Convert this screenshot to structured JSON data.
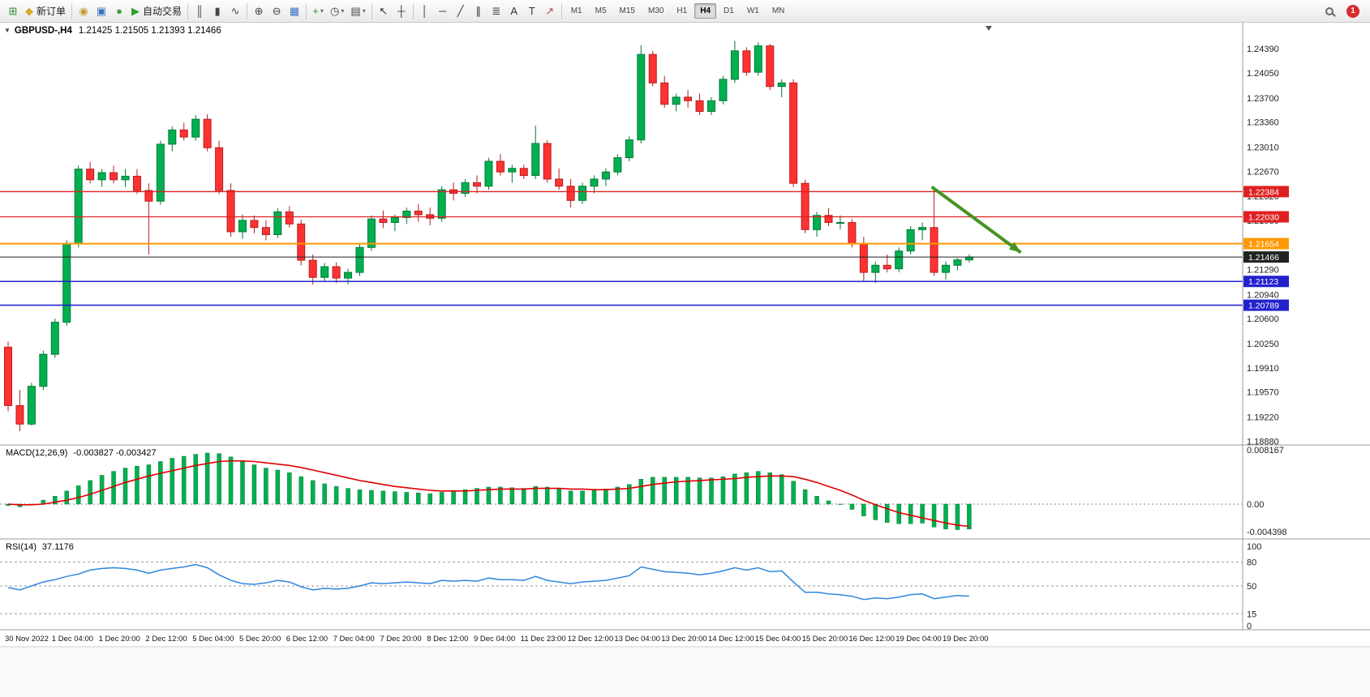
{
  "icons": {
    "one_click_toggle": "▼",
    "dropdown": "▾"
  },
  "toolbar": {
    "groups": [
      {
        "buttons": [
          {
            "name": "new-chart",
            "glyph": "⊞",
            "color": "#2f8f2f"
          },
          {
            "name": "new-order",
            "glyph": "◆",
            "color": "#d9a82a",
            "label": "新订单"
          }
        ]
      },
      {
        "buttons": [
          {
            "name": "mql5-community",
            "glyph": "◉",
            "color": "#c79a2e"
          },
          {
            "name": "charts-window",
            "glyph": "▣",
            "color": "#3a6fc4"
          },
          {
            "name": "metaeditor",
            "glyph": "●",
            "color": "#3f9e3f"
          },
          {
            "name": "autotrade",
            "glyph": "▶",
            "color": "#2f9e2f",
            "label": "自动交易"
          }
        ]
      },
      {
        "buttons": [
          {
            "name": "bar-chart-mode",
            "glyph": "║",
            "color": "#444444"
          },
          {
            "name": "candlestick-mode",
            "glyph": "▮",
            "color": "#444444"
          },
          {
            "name": "line-chart-mode",
            "glyph": "∿",
            "color": "#444444"
          }
        ]
      },
      {
        "buttons": [
          {
            "name": "zoom-in",
            "glyph": "⊕",
            "color": "#444444"
          },
          {
            "name": "zoom-out",
            "glyph": "⊖",
            "color": "#444444"
          },
          {
            "name": "tile-windows",
            "glyph": "▦",
            "color": "#3a6fc4"
          }
        ]
      },
      {
        "buttons": [
          {
            "name": "indicators",
            "glyph": "+",
            "color": "#2f8f2f",
            "dropdown": true
          },
          {
            "name": "periods",
            "glyph": "◷",
            "color": "#444444",
            "dropdown": true
          },
          {
            "name": "templates",
            "glyph": "▤",
            "color": "#444444",
            "dropdown": true
          }
        ]
      },
      {
        "buttons": [
          {
            "name": "cursor",
            "glyph": "↖",
            "color": "#333333"
          },
          {
            "name": "crosshair",
            "glyph": "┼",
            "color": "#333333"
          }
        ]
      },
      {
        "buttons": [
          {
            "name": "vertical-line",
            "glyph": "│",
            "color": "#333333"
          },
          {
            "name": "horizontal-line",
            "glyph": "─",
            "color": "#333333"
          },
          {
            "name": "trendline",
            "glyph": "╱",
            "color": "#333333"
          },
          {
            "name": "equidistant-channel",
            "glyph": "∥",
            "color": "#333333"
          },
          {
            "name": "fibonacci",
            "glyph": "≣",
            "color": "#333333"
          },
          {
            "name": "text",
            "glyph": "A",
            "color": "#333333"
          },
          {
            "name": "text-label",
            "glyph": "T",
            "color": "#333333"
          },
          {
            "name": "arrows",
            "glyph": "↗",
            "color": "#b34a4a"
          }
        ]
      }
    ],
    "timeframes": [
      "M1",
      "M5",
      "M15",
      "M30",
      "H1",
      "H4",
      "D1",
      "W1",
      "MN"
    ],
    "active_timeframe": "H4",
    "notification_count": "1"
  },
  "chart_data": {
    "type": "candlestick",
    "symbol_line": "GBPUSD-,H4",
    "ohlc_line": "1.21425 1.21505 1.21393 1.21466",
    "current": {
      "open": 1.21425,
      "high": 1.21505,
      "low": 1.21393,
      "close": 1.21466
    },
    "price_axis_ticks": [
      1.2439,
      1.2405,
      1.237,
      1.2336,
      1.2301,
      1.2267,
      1.2232,
      1.2198,
      1.2163,
      1.2129,
      1.2094,
      1.206,
      1.2025,
      1.1991,
      1.1957,
      1.1922,
      1.1888
    ],
    "hlines": [
      {
        "price": 1.22384,
        "label": "1.22384",
        "color": "#e02020",
        "width": 1.3
      },
      {
        "price": 1.2203,
        "label": "1.22030",
        "color": "#e02020",
        "width": 1.3
      },
      {
        "price": 1.21654,
        "label": "1.21654",
        "color": "#ff9900",
        "width": 2
      },
      {
        "price": 1.21466,
        "label": "1.21466",
        "color": "#222222",
        "width": 1
      },
      {
        "price": 1.21123,
        "label": "1.21123",
        "color": "#2222cc",
        "width": 1.6
      },
      {
        "price": 1.20789,
        "label": "1.20789",
        "color": "#2222cc",
        "width": 1.6
      }
    ],
    "time_labels": [
      "30 Nov 2022",
      "1 Dec 04:00",
      "1 Dec 20:00",
      "2 Dec 12:00",
      "5 Dec 04:00",
      "5 Dec 20:00",
      "6 Dec 12:00",
      "7 Dec 04:00",
      "7 Dec 20:00",
      "8 Dec 12:00",
      "9 Dec 04:00",
      "11 Dec 23:00",
      "12 Dec 12:00",
      "13 Dec 04:00",
      "13 Dec 20:00",
      "14 Dec 12:00",
      "15 Dec 04:00",
      "15 Dec 20:00",
      "16 Dec 12:00",
      "19 Dec 04:00",
      "19 Dec 20:00"
    ],
    "candles": [
      [
        1.202,
        1.2028,
        1.193,
        1.1938
      ],
      [
        1.1938,
        1.196,
        1.1902,
        1.1912
      ],
      [
        1.1912,
        1.197,
        1.191,
        1.1965
      ],
      [
        1.1965,
        1.2015,
        1.196,
        1.201
      ],
      [
        1.201,
        1.206,
        1.2005,
        1.2055
      ],
      [
        1.2055,
        1.217,
        1.205,
        1.2165
      ],
      [
        1.2165,
        1.2275,
        1.216,
        1.227
      ],
      [
        1.227,
        1.228,
        1.225,
        1.2255
      ],
      [
        1.2255,
        1.227,
        1.2245,
        1.2265
      ],
      [
        1.2265,
        1.2275,
        1.225,
        1.2255
      ],
      [
        1.2255,
        1.227,
        1.2245,
        1.226
      ],
      [
        1.226,
        1.227,
        1.2235,
        1.224
      ],
      [
        1.224,
        1.225,
        1.215,
        1.2225
      ],
      [
        1.2225,
        1.231,
        1.222,
        1.2305
      ],
      [
        1.2305,
        1.233,
        1.2295,
        1.2325
      ],
      [
        1.2325,
        1.2335,
        1.231,
        1.2315
      ],
      [
        1.2315,
        1.2346,
        1.231,
        1.234
      ],
      [
        1.234,
        1.2347,
        1.2295,
        1.23
      ],
      [
        1.23,
        1.231,
        1.2235,
        1.224
      ],
      [
        1.224,
        1.225,
        1.2175,
        1.2182
      ],
      [
        1.2182,
        1.2206,
        1.2172,
        1.2198
      ],
      [
        1.2198,
        1.2205,
        1.218,
        1.2188
      ],
      [
        1.2188,
        1.2198,
        1.217,
        1.2178
      ],
      [
        1.2178,
        1.2215,
        1.2173,
        1.221
      ],
      [
        1.221,
        1.2218,
        1.2188,
        1.2193
      ],
      [
        1.2193,
        1.2199,
        1.2135,
        1.2142
      ],
      [
        1.2142,
        1.215,
        1.2108,
        1.2118
      ],
      [
        1.2118,
        1.2138,
        1.2113,
        1.2133
      ],
      [
        1.2133,
        1.2139,
        1.211,
        1.2117
      ],
      [
        1.2117,
        1.213,
        1.2108,
        1.2125
      ],
      [
        1.2125,
        1.2165,
        1.212,
        1.216
      ],
      [
        1.216,
        1.2205,
        1.2155,
        1.22
      ],
      [
        1.22,
        1.2212,
        1.2187,
        1.2195
      ],
      [
        1.2195,
        1.2206,
        1.2183,
        1.2202
      ],
      [
        1.2202,
        1.2216,
        1.2193,
        1.2211
      ],
      [
        1.2211,
        1.2221,
        1.2196,
        1.2206
      ],
      [
        1.2206,
        1.2216,
        1.2191,
        1.2201
      ],
      [
        1.2201,
        1.2246,
        1.2196,
        1.2241
      ],
      [
        1.2241,
        1.2251,
        1.2226,
        1.2236
      ],
      [
        1.2236,
        1.2256,
        1.2231,
        1.2251
      ],
      [
        1.2251,
        1.2261,
        1.2236,
        1.2246
      ],
      [
        1.2246,
        1.2286,
        1.2241,
        1.2281
      ],
      [
        1.2281,
        1.2291,
        1.2261,
        1.2266
      ],
      [
        1.2266,
        1.2276,
        1.2251,
        1.2271
      ],
      [
        1.2271,
        1.2276,
        1.2256,
        1.2261
      ],
      [
        1.2261,
        1.2331,
        1.2256,
        1.2306
      ],
      [
        1.2306,
        1.2311,
        1.2251,
        1.2256
      ],
      [
        1.2256,
        1.2271,
        1.2241,
        1.2246
      ],
      [
        1.2246,
        1.2256,
        1.2216,
        1.2226
      ],
      [
        1.2226,
        1.2251,
        1.2221,
        1.2246
      ],
      [
        1.2246,
        1.2261,
        1.2236,
        1.2256
      ],
      [
        1.2256,
        1.2271,
        1.2246,
        1.2266
      ],
      [
        1.2266,
        1.2291,
        1.2261,
        1.2286
      ],
      [
        1.2286,
        1.2316,
        1.2281,
        1.2311
      ],
      [
        1.2311,
        1.2444,
        1.2306,
        1.2431
      ],
      [
        1.2431,
        1.2436,
        1.2386,
        1.2391
      ],
      [
        1.2391,
        1.2401,
        1.2356,
        1.2361
      ],
      [
        1.2361,
        1.2376,
        1.2351,
        1.2371
      ],
      [
        1.2371,
        1.2381,
        1.2356,
        1.2366
      ],
      [
        1.2366,
        1.2376,
        1.2346,
        1.2351
      ],
      [
        1.2351,
        1.2371,
        1.2346,
        1.2366
      ],
      [
        1.2366,
        1.2401,
        1.2361,
        1.2396
      ],
      [
        1.2396,
        1.245,
        1.2391,
        1.2436
      ],
      [
        1.2436,
        1.2441,
        1.2401,
        1.2406
      ],
      [
        1.2406,
        1.2448,
        1.2401,
        1.2443
      ],
      [
        1.2443,
        1.2446,
        1.2381,
        1.2386
      ],
      [
        1.2386,
        1.2396,
        1.2371,
        1.2391
      ],
      [
        1.2391,
        1.2396,
        1.2245,
        1.225
      ],
      [
        1.225,
        1.2255,
        1.218,
        1.2185
      ],
      [
        1.2185,
        1.221,
        1.2175,
        1.2205
      ],
      [
        1.2205,
        1.2215,
        1.219,
        1.2195
      ],
      [
        1.2195,
        1.2205,
        1.2185,
        1.2195
      ],
      [
        1.2195,
        1.22,
        1.216,
        1.2165
      ],
      [
        1.2165,
        1.2175,
        1.2113,
        1.2125
      ],
      [
        1.2125,
        1.214,
        1.211,
        1.2135
      ],
      [
        1.2135,
        1.215,
        1.2125,
        1.213
      ],
      [
        1.213,
        1.216,
        1.2125,
        1.2155
      ],
      [
        1.2155,
        1.219,
        1.215,
        1.2185
      ],
      [
        1.2185,
        1.2195,
        1.217,
        1.2188
      ],
      [
        1.2188,
        1.2244,
        1.212,
        1.2125
      ],
      [
        1.2125,
        1.214,
        1.2115,
        1.2135
      ],
      [
        1.2135,
        1.2145,
        1.2128,
        1.21425
      ],
      [
        1.21425,
        1.21505,
        1.21393,
        1.21466
      ]
    ],
    "macd": {
      "title": "MACD(12,26,9)",
      "values_text": "-0.003827 -0.003427",
      "macd_value": -0.003827,
      "signal_value": -0.003427,
      "scale_labels": [
        "0.008167",
        "0.00",
        "-0.004398"
      ],
      "hist": [
        -0.0002,
        -0.0004,
        0.0,
        0.0006,
        0.0012,
        0.002,
        0.0028,
        0.0036,
        0.0044,
        0.005,
        0.0055,
        0.0058,
        0.006,
        0.0065,
        0.007,
        0.0073,
        0.0076,
        0.0078,
        0.0077,
        0.0072,
        0.0066,
        0.006,
        0.0055,
        0.0052,
        0.0048,
        0.0042,
        0.0036,
        0.0031,
        0.0027,
        0.0024,
        0.0022,
        0.0021,
        0.002,
        0.0019,
        0.0018,
        0.0017,
        0.0016,
        0.0018,
        0.002,
        0.0022,
        0.0024,
        0.0026,
        0.0026,
        0.0025,
        0.0024,
        0.0027,
        0.0026,
        0.0023,
        0.002,
        0.002,
        0.0021,
        0.0023,
        0.0026,
        0.003,
        0.0038,
        0.0041,
        0.0041,
        0.0041,
        0.0041,
        0.004,
        0.004,
        0.0042,
        0.0046,
        0.0048,
        0.005,
        0.0048,
        0.0045,
        0.0035,
        0.0022,
        0.0012,
        0.0005,
        0.0,
        -0.0008,
        -0.0018,
        -0.0024,
        -0.0028,
        -0.003,
        -0.003,
        -0.0029,
        -0.0035,
        -0.0038,
        -0.0039,
        -0.0038
      ],
      "signal": [
        0.0,
        -0.0001,
        -0.0001,
        0.0,
        0.0003,
        0.0006,
        0.001,
        0.0015,
        0.0021,
        0.0027,
        0.0033,
        0.0038,
        0.0043,
        0.0047,
        0.0051,
        0.0055,
        0.0059,
        0.0062,
        0.0065,
        0.0066,
        0.0066,
        0.0065,
        0.0063,
        0.0061,
        0.0059,
        0.0056,
        0.0052,
        0.0048,
        0.0044,
        0.004,
        0.0036,
        0.0033,
        0.003,
        0.0027,
        0.0025,
        0.0023,
        0.0021,
        0.002,
        0.002,
        0.002,
        0.0021,
        0.0022,
        0.0023,
        0.0023,
        0.0023,
        0.0024,
        0.0024,
        0.0024,
        0.0023,
        0.0023,
        0.0022,
        0.0022,
        0.0023,
        0.0024,
        0.0027,
        0.003,
        0.0032,
        0.0034,
        0.0035,
        0.0036,
        0.0037,
        0.0038,
        0.0039,
        0.0041,
        0.0042,
        0.0043,
        0.0043,
        0.0042,
        0.0038,
        0.0033,
        0.0027,
        0.0021,
        0.0014,
        0.0006,
        -0.0001,
        -0.0007,
        -0.0013,
        -0.0017,
        -0.0021,
        -0.0025,
        -0.0029,
        -0.0032,
        -0.0034
      ]
    },
    "rsi": {
      "title": "RSI(14)",
      "value_text": "37.1176",
      "value": 37.1176,
      "levels": [
        80,
        50,
        15
      ],
      "scale_labels": [
        "100",
        "80",
        "50",
        "15",
        "0"
      ],
      "values": [
        48,
        45,
        50,
        55,
        58,
        62,
        65,
        70,
        72,
        73,
        72,
        70,
        66,
        70,
        72,
        74,
        77,
        73,
        64,
        57,
        53,
        52,
        54,
        57,
        55,
        49,
        45,
        47,
        46,
        47,
        50,
        54,
        53,
        54,
        55,
        54,
        53,
        57,
        56,
        57,
        56,
        60,
        58,
        58,
        57,
        62,
        57,
        55,
        53,
        55,
        56,
        57,
        60,
        63,
        74,
        71,
        68,
        67,
        66,
        64,
        66,
        69,
        73,
        70,
        73,
        68,
        69,
        55,
        42,
        42,
        40,
        39,
        37,
        33,
        35,
        34,
        36,
        39,
        40,
        34,
        36,
        38,
        37.1
      ],
      "legend_position": "top-left"
    },
    "trend_arrow": {
      "from": {
        "candle": 78.8,
        "price": 1.2245
      },
      "to": {
        "candle": 86.4,
        "price": 1.2153
      }
    },
    "colors": {
      "up": "#00b050",
      "up_border": "#007a36",
      "down": "#ff3232",
      "down_border": "#b51f1f",
      "macd_hist": "#00b050",
      "macd_hist_border": "#007a36",
      "macd_signal": "#e00000",
      "rsi_line": "#2e86de",
      "arrow": "#449422",
      "hline_red": "#e02020",
      "hline_orange": "#ff9900",
      "hline_blue": "#2222cc",
      "current_price": "#222222"
    }
  }
}
